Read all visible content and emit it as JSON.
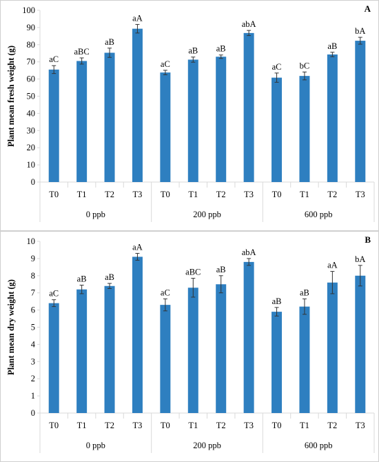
{
  "chart_data": [
    {
      "type": "bar",
      "panel": "A",
      "ylabel": "Plant mean fresh weight (g)",
      "ylim": [
        0,
        100
      ],
      "yticks": [
        0,
        10,
        20,
        30,
        40,
        50,
        60,
        70,
        80,
        90,
        100
      ],
      "groups": [
        "0 ppb",
        "200 ppb",
        "600 ppb"
      ],
      "categories": [
        "T0",
        "T1",
        "T2",
        "T3",
        "T0",
        "T1",
        "T2",
        "T3",
        "T0",
        "T1",
        "T2",
        "T3"
      ],
      "values": [
        65.5,
        70.5,
        75.3,
        89.3,
        63.8,
        71.3,
        73.0,
        86.8,
        60.8,
        61.8,
        74.3,
        82.3
      ],
      "errors": [
        2.3,
        1.8,
        2.7,
        2.5,
        1.3,
        1.5,
        1.0,
        1.5,
        2.7,
        2.3,
        1.3,
        2.0
      ],
      "labels": [
        "aC",
        "aBC",
        "aB",
        "aA",
        "aC",
        "aB",
        "aB",
        "abA",
        "aC",
        "bC",
        "aB",
        "bA"
      ],
      "bar_color": "#2E7FC0"
    },
    {
      "type": "bar",
      "panel": "B",
      "ylabel": "Plant mean dry weight (g)",
      "ylim": [
        0,
        10
      ],
      "yticks": [
        0,
        1,
        2,
        3,
        4,
        5,
        6,
        7,
        8,
        9,
        10
      ],
      "groups": [
        "0 ppb",
        "200 ppb",
        "600 ppb"
      ],
      "categories": [
        "T0",
        "T1",
        "T2",
        "T3",
        "T0",
        "T1",
        "T2",
        "T3",
        "T0",
        "T1",
        "T2",
        "T3"
      ],
      "values": [
        6.4,
        7.2,
        7.4,
        9.1,
        6.3,
        7.3,
        7.5,
        8.8,
        5.9,
        6.2,
        7.6,
        8.0
      ],
      "errors": [
        0.2,
        0.25,
        0.15,
        0.2,
        0.35,
        0.55,
        0.5,
        0.2,
        0.25,
        0.45,
        0.65,
        0.6
      ],
      "labels": [
        "aC",
        "aB",
        "aB",
        "aA",
        "aC",
        "aBC",
        "aB",
        "abA",
        "aB",
        "aB",
        "aA",
        "bA"
      ],
      "bar_color": "#2E7FC0"
    }
  ]
}
